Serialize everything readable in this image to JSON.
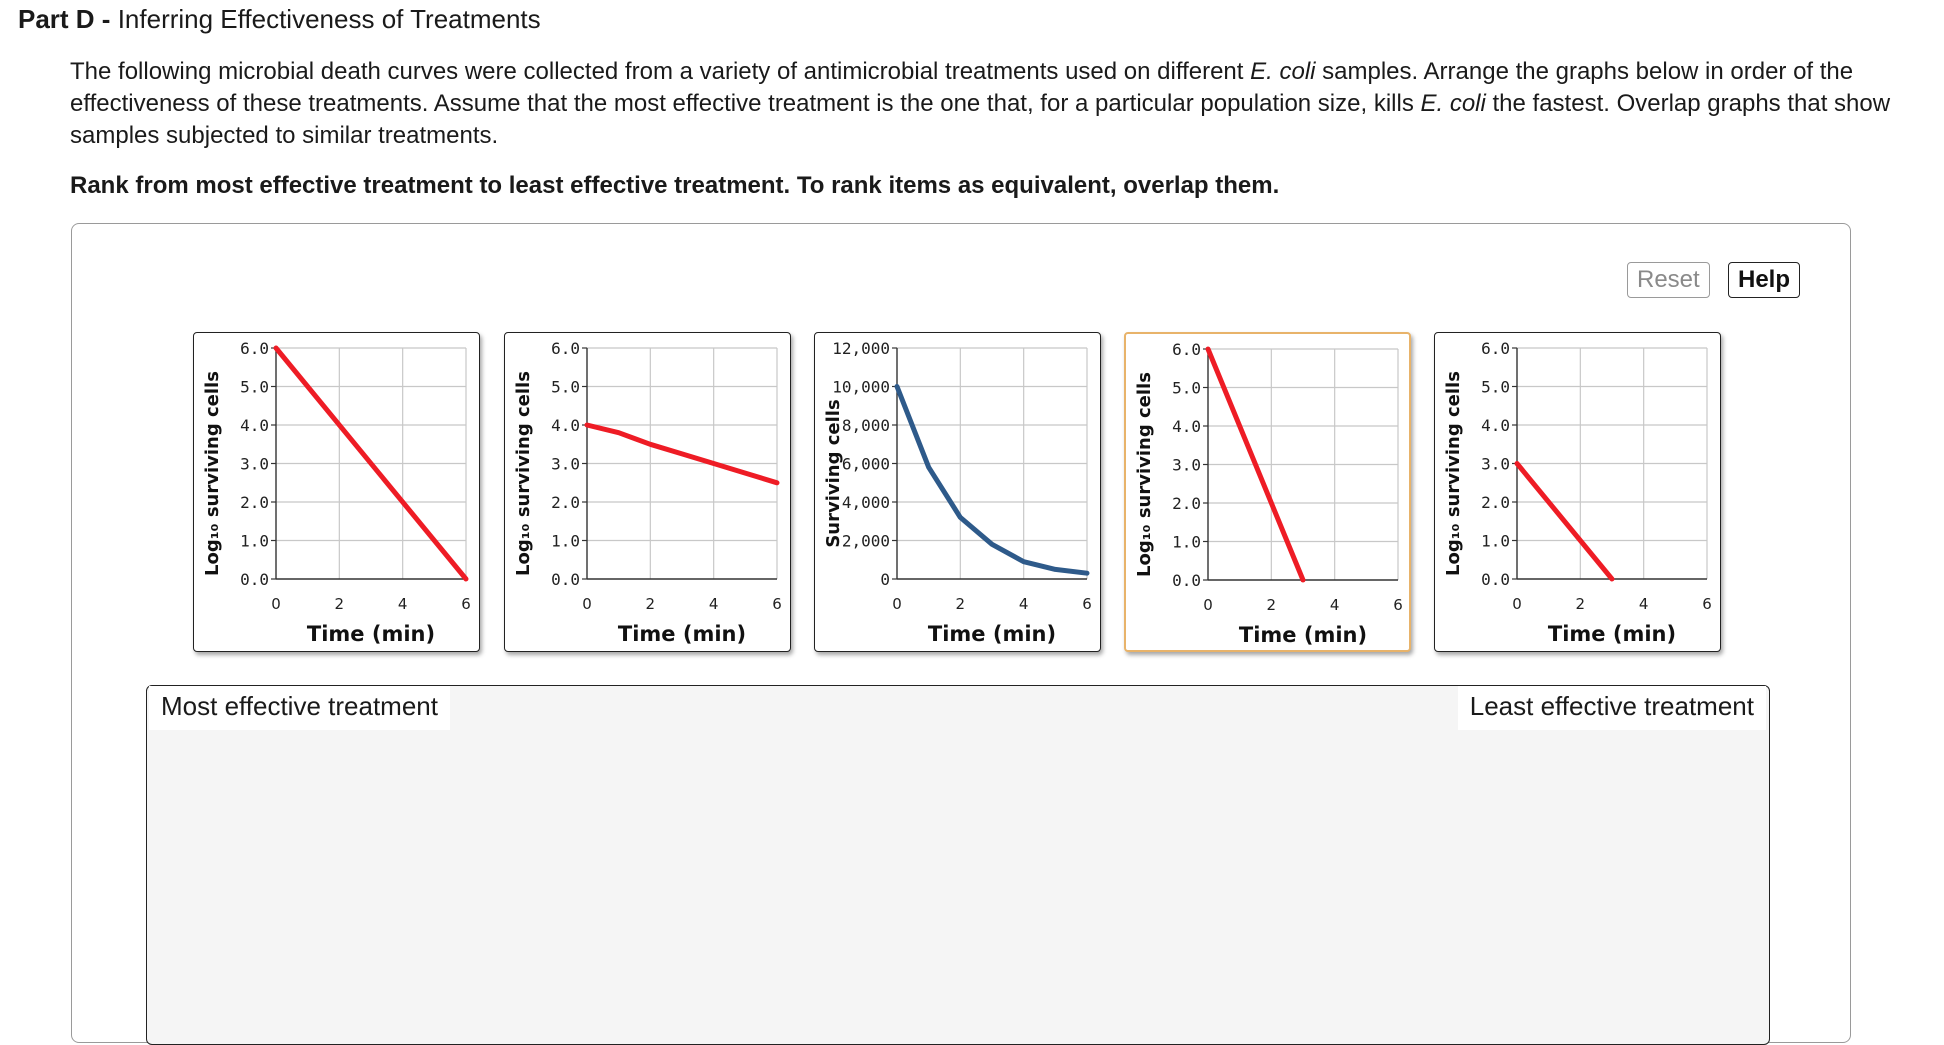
{
  "part": {
    "label": "Part D -",
    "title": "Inferring Effectiveness of Treatments"
  },
  "instructions": {
    "before_1": "The following microbial death curves were collected from a variety of antimicrobial treatments used on different ",
    "organism_1": "E. coli",
    "after_1": " samples. Arrange the graphs below in order of the effectiveness of these treatments. Assume that the most effective treatment is the one that, for a particular population size, kills ",
    "organism_2": "E. coli",
    "after_2": " the fastest. Overlap graphs that show samples subjected to similar treatments."
  },
  "rank_prompt": "Rank from most effective treatment to least effective treatment. To rank items as equivalent, overlap them.",
  "buttons": {
    "reset": "Reset",
    "help": "Help"
  },
  "drop_zone": {
    "most_label": "Most effective treatment",
    "least_label": "Least effective treatment"
  },
  "colors": {
    "red_curve": "#ee1c25",
    "blue_curve": "#2e5a8a",
    "selected_border": "#e8b36a",
    "grid": "#c8c8c8"
  },
  "chart_data": [
    {
      "type": "line",
      "selected": false,
      "ylabel": "Log₁₀ surviving cells",
      "xlabel": "Time (min)",
      "yticks": [
        "6.0",
        "5.0",
        "4.0",
        "3.0",
        "2.0",
        "1.0",
        "0.0"
      ],
      "xticks": [
        "0",
        "2",
        "4",
        "6"
      ],
      "xlim": [
        0,
        6
      ],
      "ylim": [
        0,
        6
      ],
      "color": "#ee1c25",
      "x": [
        0,
        6
      ],
      "y": [
        6.0,
        0.0
      ]
    },
    {
      "type": "line",
      "selected": false,
      "ylabel": "Log₁₀ surviving cells",
      "xlabel": "Time (min)",
      "yticks": [
        "6.0",
        "5.0",
        "4.0",
        "3.0",
        "2.0",
        "1.0",
        "0.0"
      ],
      "xticks": [
        "0",
        "2",
        "4",
        "6"
      ],
      "xlim": [
        0,
        6
      ],
      "ylim": [
        0,
        6
      ],
      "color": "#ee1c25",
      "x": [
        0,
        1,
        2,
        3,
        4,
        5,
        6
      ],
      "y": [
        4.0,
        3.8,
        3.5,
        3.25,
        3.0,
        2.75,
        2.5
      ]
    },
    {
      "type": "line",
      "selected": false,
      "ylabel": "Surviving cells",
      "xlabel": "Time (min)",
      "yticks": [
        "12,000",
        "10,000",
        "8,000",
        "6,000",
        "4,000",
        "2,000",
        "0"
      ],
      "xticks": [
        "0",
        "2",
        "4",
        "6"
      ],
      "xlim": [
        0,
        6
      ],
      "ylim": [
        0,
        12000
      ],
      "color": "#2e5a8a",
      "x": [
        0,
        1,
        2,
        3,
        4,
        5,
        6
      ],
      "y": [
        10000,
        5800,
        3200,
        1800,
        900,
        500,
        300
      ]
    },
    {
      "type": "line",
      "selected": true,
      "ylabel": "Log₁₀ surviving cells",
      "xlabel": "Time (min)",
      "yticks": [
        "6.0",
        "5.0",
        "4.0",
        "3.0",
        "2.0",
        "1.0",
        "0.0"
      ],
      "xticks": [
        "0",
        "2",
        "4",
        "6"
      ],
      "xlim": [
        0,
        6
      ],
      "ylim": [
        0,
        6
      ],
      "color": "#ee1c25",
      "x": [
        0,
        3
      ],
      "y": [
        6.0,
        0.0
      ]
    },
    {
      "type": "line",
      "selected": false,
      "ylabel": "Log₁₀ surviving cells",
      "xlabel": "Time (min)",
      "yticks": [
        "6.0",
        "5.0",
        "4.0",
        "3.0",
        "2.0",
        "1.0",
        "0.0"
      ],
      "xticks": [
        "0",
        "2",
        "4",
        "6"
      ],
      "xlim": [
        0,
        6
      ],
      "ylim": [
        0,
        6
      ],
      "color": "#ee1c25",
      "x": [
        0,
        3
      ],
      "y": [
        3.0,
        0.0
      ]
    }
  ]
}
